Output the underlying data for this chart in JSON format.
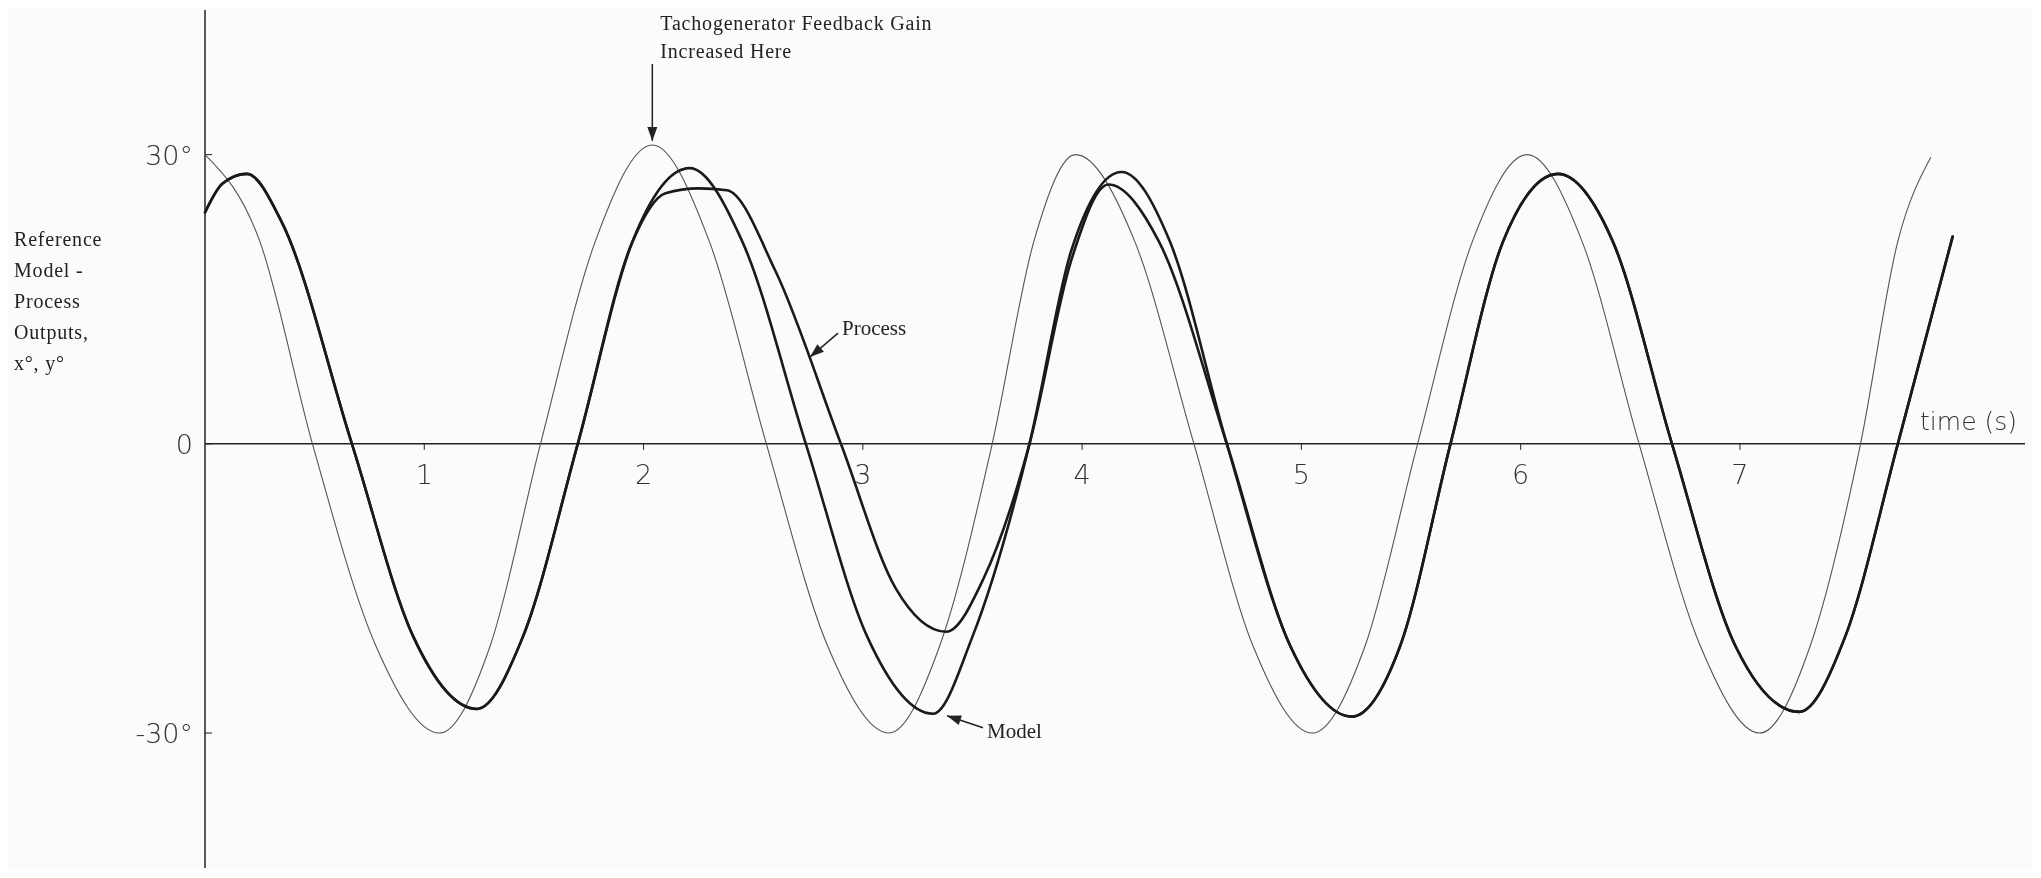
{
  "chart_data": {
    "type": "line",
    "xlabel": "time (s)",
    "ylabel": "Reference Model - Process Outputs, x°, y°",
    "xlim": [
      0,
      8.3
    ],
    "ylim": [
      -44,
      45
    ],
    "xticks": [
      1,
      2,
      3,
      4,
      5,
      6,
      7
    ],
    "yticks": [
      {
        "value": 30,
        "label": "30°"
      },
      0,
      {
        "value": -30,
        "label": "-30°"
      }
    ],
    "annotations": [
      {
        "text": "Tachogenerator Feedback Gain Increased Here",
        "x": 2.04,
        "y": 31
      }
    ],
    "series": [
      {
        "color": "#555555",
        "x": [
          0,
          0.25,
          0.49,
          0.78,
          1.07,
          1.3,
          1.53,
          1.78,
          2.04,
          2.3,
          2.56,
          2.84,
          3.12,
          3.35,
          3.59,
          3.78,
          3.97,
          4.24,
          4.51,
          4.78,
          5.05,
          5.29,
          5.53,
          5.78,
          6.03,
          6.28,
          6.54,
          6.82,
          7.09,
          7.32,
          7.55,
          7.72,
          7.87
        ],
        "values": [
          30,
          21,
          0,
          -21,
          -30,
          -21,
          0,
          21,
          31,
          21,
          0,
          -21,
          -30,
          -21,
          0,
          21,
          30,
          21,
          0,
          -21,
          -30,
          -21,
          0,
          21,
          30,
          21,
          0,
          -21,
          -30,
          -21,
          0,
          21,
          29.7
        ]
      },
      {
        "name": "Process",
        "color": "#1a1a1a",
        "x": [
          0,
          0.08,
          0.19,
          0.35,
          0.67,
          0.95,
          1.24,
          1.45,
          1.7,
          1.95,
          2.1,
          2.25,
          2.38,
          2.6,
          2.9,
          3.15,
          3.38,
          3.55,
          3.76,
          3.95,
          4.12,
          4.35,
          4.66,
          4.95,
          5.23,
          5.45,
          5.68,
          5.92,
          6.17,
          6.42,
          6.69,
          6.98,
          7.27,
          7.48,
          7.72,
          7.97
        ],
        "values": [
          24,
          27,
          28,
          23,
          0,
          -20,
          -27.5,
          -20,
          0,
          21,
          26,
          26.5,
          26.3,
          18,
          0,
          -15,
          -19.5,
          -14,
          0,
          19,
          26.9,
          21,
          0,
          -21,
          -28.3,
          -21,
          0,
          21,
          28,
          21,
          0,
          -21,
          -27.8,
          -20,
          0,
          21.5
        ]
      },
      {
        "name": "Model",
        "color": "#1a1a1a",
        "x": [
          0,
          0.08,
          0.19,
          0.35,
          0.67,
          0.95,
          1.24,
          1.45,
          1.7,
          1.95,
          2.21,
          2.45,
          2.74,
          3.02,
          3.32,
          3.5,
          3.76,
          3.95,
          4.18,
          4.4,
          4.66,
          4.95,
          5.23,
          5.45,
          5.68,
          5.92,
          6.17,
          6.42,
          6.69,
          6.98,
          7.27,
          7.48,
          7.72,
          7.97
        ],
        "values": [
          24,
          27,
          28,
          23,
          0,
          -20,
          -27.5,
          -20,
          0,
          21,
          28.6,
          21,
          0,
          -20,
          -28,
          -20,
          0,
          20,
          28.2,
          21,
          0,
          -21,
          -28.3,
          -21,
          0,
          21,
          28,
          21,
          0,
          -21,
          -27.8,
          -20,
          0,
          21.5
        ]
      }
    ]
  }
}
